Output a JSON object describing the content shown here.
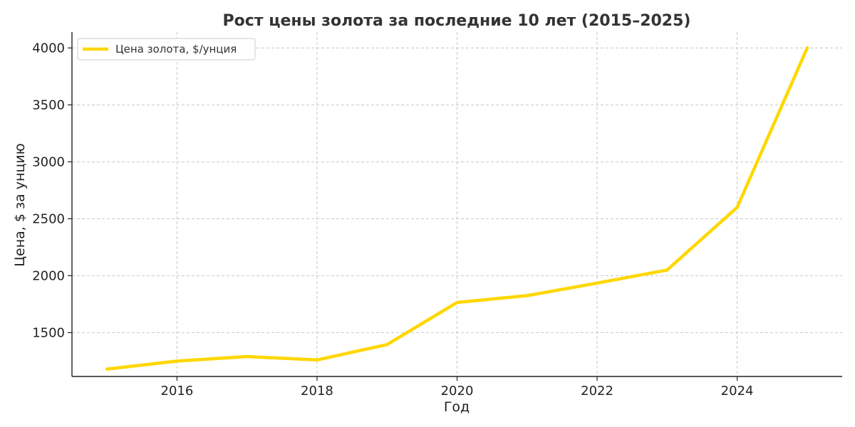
{
  "chart_data": {
    "type": "line",
    "title": "Рост цены золота за последние 10 лет (2015–2025)",
    "xlabel": "Год",
    "ylabel": "Цена, $ за унцию",
    "xlim": [
      2014.5,
      2025.5
    ],
    "ylim": [
      1115,
      4140
    ],
    "x_ticks": [
      2016,
      2018,
      2020,
      2022,
      2024
    ],
    "y_ticks": [
      1500,
      2000,
      2500,
      3000,
      3500,
      4000
    ],
    "grid": true,
    "legend_position": "top-left",
    "series": [
      {
        "name": "Цена золота, $/унция",
        "color": "#FFD700",
        "x": [
          2015,
          2016,
          2017,
          2018,
          2019,
          2020,
          2021,
          2022,
          2023,
          2024,
          2025
        ],
        "y": [
          1180,
          1250,
          1290,
          1260,
          1395,
          1765,
          1825,
          1935,
          2050,
          2600,
          4000
        ]
      }
    ]
  }
}
